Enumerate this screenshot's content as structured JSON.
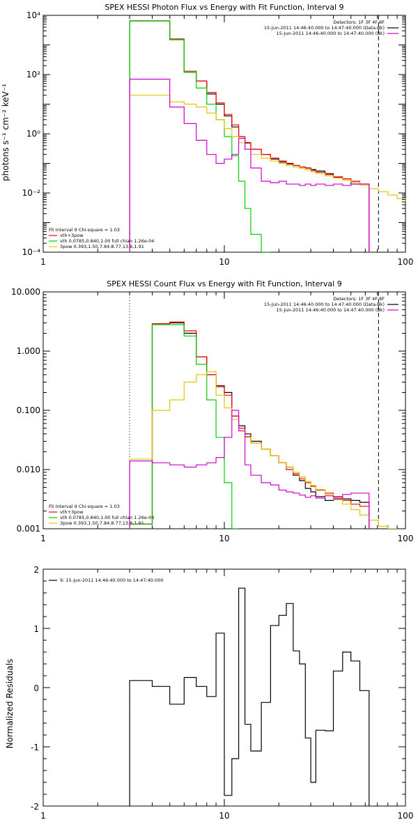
{
  "colors": {
    "data": "#000000",
    "background": "#d000d0",
    "total": "#ff0000",
    "thermal": "#00d000",
    "powerlaw": "#e0c800"
  },
  "chart_data": [
    {
      "type": "line",
      "title": "SPEX HESSI Photon Flux vs Energy with Fit Function, Interval 9",
      "ylabel": "photons s⁻¹ cm⁻² keV⁻¹",
      "xlabel": "",
      "xscale": "log",
      "yscale": "log",
      "xlim": [
        1,
        100
      ],
      "ylim": [
        0.0001,
        10000
      ],
      "x_ticks": [
        "1",
        "10",
        "100"
      ],
      "y_ticks": [
        "10⁻⁴",
        "10⁻²",
        "10⁰",
        "10²",
        "10⁴"
      ],
      "legend_topright": [
        "Detectors: 1F 3F 4F 8F",
        "15-Jun-2011 14:46:40.000 to 14:47:40.000 (Data-Bk)",
        "15-Jun-2011 14:46:40.000 to 14:47:40.000 (Bk)"
      ],
      "legend_bottomleft": [
        "Fit Interval 9    Chi-square = 1.03",
        "vth+3pow",
        "vth 0.0785,0.840,1.00   full chian 1.26e-04",
        "3pow 0.393,1.50,7.84,8.77,13.6,1.91"
      ],
      "edges": [
        3,
        4,
        5,
        6,
        7,
        8,
        9,
        10,
        11,
        12,
        13,
        14,
        16,
        18,
        20,
        22,
        24,
        26,
        28,
        30,
        32,
        36,
        40,
        45,
        50,
        56,
        63,
        71,
        80,
        90,
        100
      ],
      "series": [
        {
          "name": "Data-Bk",
          "color_key": "data",
          "values": [
            6500,
            6500,
            1500,
            120,
            60,
            22,
            10,
            4,
            1.7,
            0.8,
            0.5,
            0.3,
            0.2,
            0.14,
            0.11,
            0.095,
            0.085,
            0.075,
            0.07,
            0.062,
            0.055,
            0.045,
            0.033,
            0.03,
            0.02,
            0.02
          ]
        },
        {
          "name": "vth+3pow",
          "color_key": "total",
          "values": [
            6500,
            6500,
            1600,
            130,
            60,
            25,
            11,
            4.5,
            2.0,
            0.8,
            0.48,
            0.3,
            0.2,
            0.15,
            0.12,
            0.1,
            0.085,
            0.075,
            0.068,
            0.058,
            0.05,
            0.042,
            0.035,
            0.03,
            0.025,
            0.02
          ]
        },
        {
          "name": "vth",
          "color_key": "thermal",
          "values": [
            6500,
            6500,
            1500,
            120,
            35,
            10,
            3,
            0.8,
            0.18,
            0.025,
            0.003,
            0.0004,
            0.0001
          ]
        },
        {
          "name": "3pow",
          "color_key": "powerlaw",
          "values": [
            20,
            20,
            12,
            10,
            8,
            5,
            3,
            1.5,
            0.8,
            0.5,
            0.3,
            0.2,
            0.15,
            0.12,
            0.1,
            0.085,
            0.075,
            0.068,
            0.06,
            0.052,
            0.045,
            0.038,
            0.032,
            0.027,
            0.023,
            0.018,
            0.014,
            0.011,
            0.0085,
            0.0065,
            0.005
          ]
        },
        {
          "name": "Bk",
          "color_key": "background",
          "values": [
            70,
            70,
            8,
            2.2,
            0.6,
            0.2,
            0.1,
            0.14,
            0.2,
            0.7,
            0.3,
            0.07,
            0.025,
            0.022,
            0.025,
            0.02,
            0.02,
            0.018,
            0.02,
            0.018,
            0.02,
            0.018,
            0.02,
            0.018,
            0.02,
            0.02
          ]
        }
      ],
      "vlines": [
        {
          "x": 3,
          "style": "dotted"
        },
        {
          "x": 71,
          "style": "dashed"
        }
      ]
    },
    {
      "type": "line",
      "title": "SPEX HESSI Count Flux vs Energy with Fit Function, Interval 9",
      "ylabel": "",
      "xlabel": "",
      "xscale": "log",
      "yscale": "log",
      "xlim": [
        1,
        100
      ],
      "ylim": [
        0.001,
        10
      ],
      "x_ticks": [
        "1",
        "10",
        "100"
      ],
      "y_ticks": [
        "0.001",
        "0.010",
        "0.100",
        "1.000",
        "10.000"
      ],
      "legend_topright": [
        "Detectors: 1F 3F 4F 8F",
        "15-Jun-2011 14:46:40.000 to 14:47:40.000 (Data-Bk)",
        "15-Jun-2011 14:46:40.000 to 14:47:40.000 (Bk)"
      ],
      "legend_bottomleft": [
        "Fit Interval 9    Chi-square = 1.03",
        "vth+3pow",
        "vth 0.0785,0.840,1.00   full chian 1.26e-04",
        "3pow 0.393,1.50,7.84,8.77,13.6,1.91"
      ],
      "edges": [
        3,
        4,
        5,
        6,
        7,
        8,
        9,
        10,
        11,
        12,
        13,
        14,
        16,
        18,
        20,
        22,
        24,
        26,
        28,
        30,
        32,
        36,
        40,
        45,
        50,
        56,
        63,
        71,
        80,
        90
      ],
      "series": [
        {
          "name": "Data-Bk",
          "color_key": "data",
          "values": [
            0.0012,
            2.9,
            3.0,
            2.0,
            0.8,
            0.4,
            0.26,
            0.2,
            0.08,
            0.055,
            0.04,
            0.03,
            0.022,
            0.017,
            0.013,
            0.011,
            0.008,
            0.0065,
            0.0048,
            0.0042,
            0.0035,
            0.003,
            0.0032,
            0.0032,
            0.003,
            0.0028
          ]
        },
        {
          "name": "vth+3pow",
          "color_key": "total",
          "values": [
            0.0012,
            2.9,
            3.1,
            2.2,
            0.8,
            0.4,
            0.25,
            0.18,
            0.08,
            0.05,
            0.036,
            0.028,
            0.022,
            0.017,
            0.013,
            0.01,
            0.0085,
            0.007,
            0.006,
            0.0052,
            0.0045,
            0.004,
            0.0035,
            0.003,
            0.0026,
            0.0024
          ]
        },
        {
          "name": "vth",
          "color_key": "thermal",
          "values": [
            0.0012,
            2.8,
            2.8,
            1.8,
            0.6,
            0.15,
            0.035,
            0.006,
            0.001
          ]
        },
        {
          "name": "3pow",
          "color_key": "powerlaw",
          "values": [
            0.015,
            0.1,
            0.15,
            0.3,
            0.4,
            0.45,
            0.18,
            0.11,
            0.07,
            0.045,
            0.035,
            0.028,
            0.022,
            0.017,
            0.013,
            0.011,
            0.009,
            0.0075,
            0.0063,
            0.0054,
            0.0046,
            0.0038,
            0.0031,
            0.0026,
            0.0021,
            0.0017,
            0.0014,
            0.0011,
            0.0009
          ]
        },
        {
          "name": "Bk",
          "color_key": "background",
          "values": [
            0.014,
            0.013,
            0.012,
            0.011,
            0.012,
            0.013,
            0.016,
            0.035,
            0.1,
            0.045,
            0.012,
            0.008,
            0.006,
            0.0055,
            0.0045,
            0.0042,
            0.004,
            0.0037,
            0.0034,
            0.0036,
            0.0033,
            0.0036,
            0.0034,
            0.0038,
            0.004,
            0.004
          ]
        }
      ],
      "vlines": [
        {
          "x": 3,
          "style": "dotted"
        },
        {
          "x": 71,
          "style": "dashed"
        }
      ]
    },
    {
      "type": "line",
      "title": "",
      "ylabel": "Normalized Residuals",
      "xlabel": "",
      "xscale": "log",
      "yscale": "linear",
      "xlim": [
        1,
        100
      ],
      "ylim": [
        -2,
        2
      ],
      "x_ticks": [
        "1",
        "10",
        "100"
      ],
      "y_ticks": [
        "-2",
        "-1",
        "0",
        "1",
        "2"
      ],
      "legend_topleft": [
        "9: 15-Jun-2011 14:46:40.000 to 14:47:40.000"
      ],
      "edges": [
        3,
        4,
        5,
        6,
        7,
        8,
        9,
        10,
        11,
        12,
        13,
        14,
        16,
        18,
        20,
        22,
        24,
        26,
        28,
        30,
        32,
        36,
        40,
        45,
        50,
        56,
        63,
        71
      ],
      "series": [
        {
          "name": "9: 15-Jun-2011 14:46:40.000 to 14:47:40.000",
          "color_key": "data",
          "values": [
            0.12,
            0.02,
            -0.28,
            0.17,
            0.02,
            -0.15,
            0.92,
            -1.82,
            -1.2,
            1.68,
            -0.62,
            -1.07,
            -0.25,
            1.05,
            1.22,
            1.42,
            0.62,
            0.4,
            -0.85,
            -1.6,
            -0.72,
            -0.73,
            0.28,
            0.6,
            0.45,
            -0.05
          ]
        }
      ],
      "vlines": []
    }
  ]
}
